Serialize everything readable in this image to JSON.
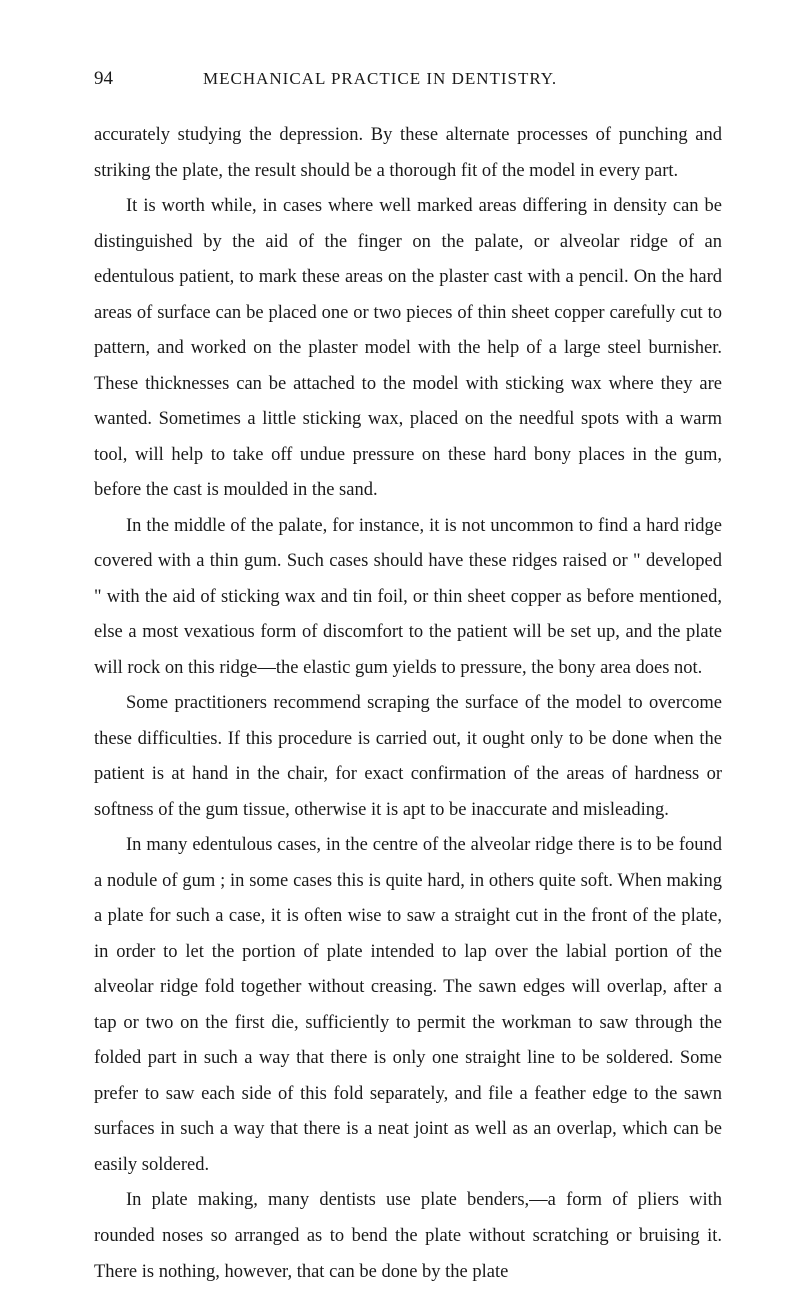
{
  "header": {
    "pageNumber": "94",
    "title": "MECHANICAL PRACTICE IN DENTISTRY."
  },
  "paragraphs": [
    {
      "indent": false,
      "text": "accurately studying the depression. By these alternate processes of punching and striking the plate, the result should be a thorough fit of the model in every part."
    },
    {
      "indent": true,
      "text": "It is worth while, in cases where well marked areas differing in density can be distinguished by the aid of the finger on the palate, or alveolar ridge of an edentulous patient, to mark these areas on the plaster cast with a pencil. On the hard areas of surface can be placed one or two pieces of thin sheet copper carefully cut to pattern, and worked on the plaster model with the help of a large steel burnisher. These thicknesses can be attached to the model with sticking wax where they are wanted. Sometimes a little sticking wax, placed on the needful spots with a warm tool, will help to take off undue pressure on these hard bony places in the gum, before the cast is moulded in the sand."
    },
    {
      "indent": true,
      "text": "In the middle of the palate, for instance, it is not uncommon to find a hard ridge covered with a thin gum. Such cases should have these ridges raised or \" developed \" with the aid of sticking wax and tin foil, or thin sheet copper as before mentioned, else a most vexatious form of discomfort to the patient will be set up, and the plate will rock on this ridge—the elastic gum yields to pressure, the bony area does not."
    },
    {
      "indent": true,
      "text": "Some practitioners recommend scraping the surface of the model to overcome these difficulties. If this procedure is carried out, it ought only to be done when the patient is at hand in the chair, for exact confirmation of the areas of hardness or softness of the gum tissue, otherwise it is apt to be inaccurate and misleading."
    },
    {
      "indent": true,
      "text": "In many edentulous cases, in the centre of the alveolar ridge there is to be found a nodule of gum ; in some cases this is quite hard, in others quite soft. When making a plate for such a case, it is often wise to saw a straight cut in the front of the plate, in order to let the portion of plate intended to lap over the labial portion of the alveolar ridge fold together without creasing. The sawn edges will overlap, after a tap or two on the first die, sufficiently to permit the workman to saw through the folded part in such a way that there is only one straight line to be soldered. Some prefer to saw each side of this fold separately, and file a feather edge to the sawn surfaces in such a way that there is a neat joint as well as an overlap, which can be easily soldered."
    },
    {
      "indent": true,
      "text": "In plate making, many dentists use plate benders,—a form of pliers with rounded noses so arranged as to bend the plate without scratching or bruising it. There is nothing, however, that can be done by the plate"
    }
  ],
  "styling": {
    "backgroundColor": "#ffffff",
    "textColor": "#1a1a1a",
    "bodyFontSize": 18.5,
    "headerFontSize": 17,
    "pageNumberFontSize": 19,
    "lineHeight": 1.92,
    "pageWidth": 800,
    "pageHeight": 1316
  }
}
